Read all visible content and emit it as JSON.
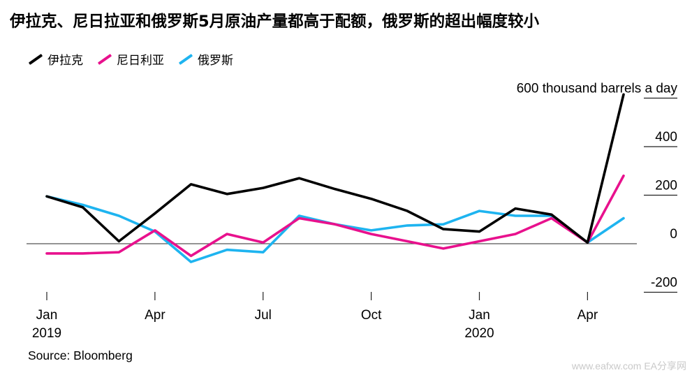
{
  "title": "伊拉克、尼日拉亚和俄罗斯5月原油产量都高于配额，俄罗斯的超出幅度较小",
  "source": "Source: Bloomberg",
  "watermark": "www.eafxw.com  EA分享网",
  "colors": {
    "iraq": "#000000",
    "nigeria": "#e8118d",
    "russia": "#1eb4f0",
    "zero": "#555555",
    "grid": "#222222"
  },
  "chart_data": {
    "type": "line",
    "x": [
      "2019-01",
      "2019-02",
      "2019-03",
      "2019-04",
      "2019-05",
      "2019-06",
      "2019-07",
      "2019-08",
      "2019-09",
      "2019-10",
      "2019-11",
      "2019-12",
      "2020-01",
      "2020-02",
      "2020-03",
      "2020-04",
      "2020-05"
    ],
    "series": [
      {
        "name": "伊拉克",
        "color": "#000000",
        "values": [
          195,
          150,
          10,
          125,
          245,
          205,
          230,
          270,
          225,
          185,
          135,
          60,
          50,
          145,
          120,
          5,
          615
        ]
      },
      {
        "name": "尼日利亚",
        "color": "#e8118d",
        "values": [
          -40,
          -40,
          -35,
          55,
          -50,
          40,
          5,
          105,
          80,
          40,
          10,
          -20,
          10,
          40,
          105,
          5,
          280
        ]
      },
      {
        "name": "俄罗斯",
        "color": "#1eb4f0",
        "values": [
          195,
          160,
          115,
          50,
          -75,
          -25,
          -35,
          115,
          80,
          55,
          75,
          80,
          135,
          115,
          115,
          5,
          105
        ]
      }
    ],
    "y_ticks": [
      -200,
      0,
      200,
      400,
      600
    ],
    "y_tick_labels": [
      "-200",
      "0",
      "200",
      "400",
      "600 thousand barrels a day"
    ],
    "ylim": [
      -210,
      640
    ],
    "y_axis_side": "right",
    "x_ticks": [
      {
        "month": "2019-01",
        "label": "Jan",
        "year": "2019"
      },
      {
        "month": "2019-04",
        "label": "Apr",
        "year": ""
      },
      {
        "month": "2019-07",
        "label": "Jul",
        "year": ""
      },
      {
        "month": "2019-10",
        "label": "Oct",
        "year": ""
      },
      {
        "month": "2020-01",
        "label": "Jan",
        "year": "2020"
      },
      {
        "month": "2020-04",
        "label": "Apr",
        "year": ""
      }
    ],
    "legend_position": "top-left",
    "grid": false
  }
}
